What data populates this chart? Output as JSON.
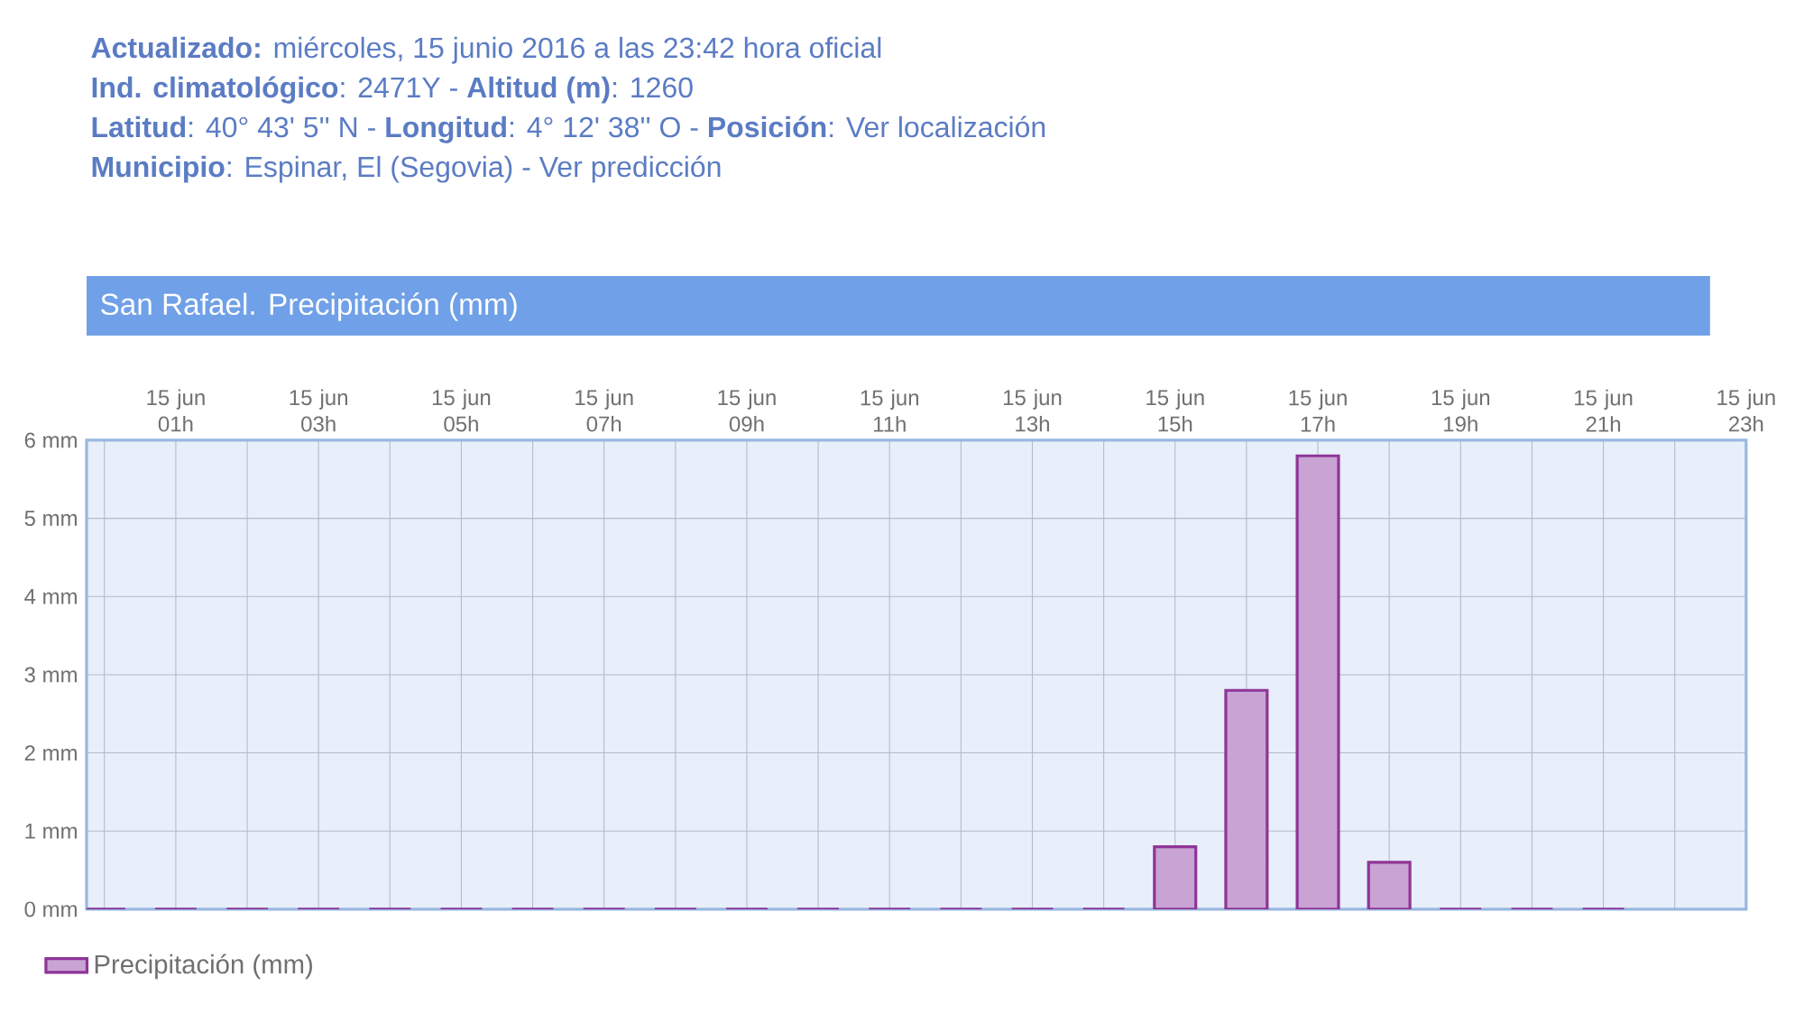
{
  "chart_data": {
    "type": "bar",
    "title": "San Rafael. Precipitación (mm)",
    "annotations": [
      "**Actualizado:** miércoles, 15 junio 2016 a las 23:42 hora oficial",
      "**Ind. climatológico**: 2471Y -  **Altitud (m)**: 1260",
      "**Latitud**: 40° 43' 5'' N - **Longitud**: 4° 12' 38'' O -  **Posición**:   Ver localización",
      "**Municipio**:   Espinar, El (Segovia) - Ver predicción"
    ],
    "categories": [
      null,
      "15 jun 01h",
      null,
      "15 jun 03h",
      null,
      "15 jun 05h",
      null,
      "15 jun 07h",
      null,
      "15 jun 09h",
      null,
      "15 jun 11h",
      null,
      "15 jun 13h",
      null,
      "15 jun 15h",
      null,
      "15 jun 17h",
      null,
      "15 jun 19h",
      null,
      "15 jun 21h",
      null,
      "15 jun 23h"
    ],
    "series": [
      {
        "name": "Precipitación (mm)",
        "color": "#c9a3d4",
        "values": [
          0,
          0,
          0,
          0,
          0,
          0,
          0,
          0,
          0,
          0,
          0,
          0,
          0,
          0,
          0,
          0.8,
          2.8,
          5.8,
          0.6,
          0,
          0,
          0,
          null,
          null
        ]
      }
    ],
    "ylim": [
      0,
      6
    ],
    "yticks": [
      {
        "value": 0,
        "label": "0 mm"
      },
      {
        "value": 1,
        "label": "1 mm"
      },
      {
        "value": 2,
        "label": "2 mm"
      },
      {
        "value": 3,
        "label": "3 mm"
      },
      {
        "value": 4,
        "label": "4 mm"
      },
      {
        "value": 5,
        "label": "5 mm"
      },
      {
        "value": 6,
        "label": "6 mm"
      }
    ],
    "grid": true,
    "legend": "bottom left"
  }
}
